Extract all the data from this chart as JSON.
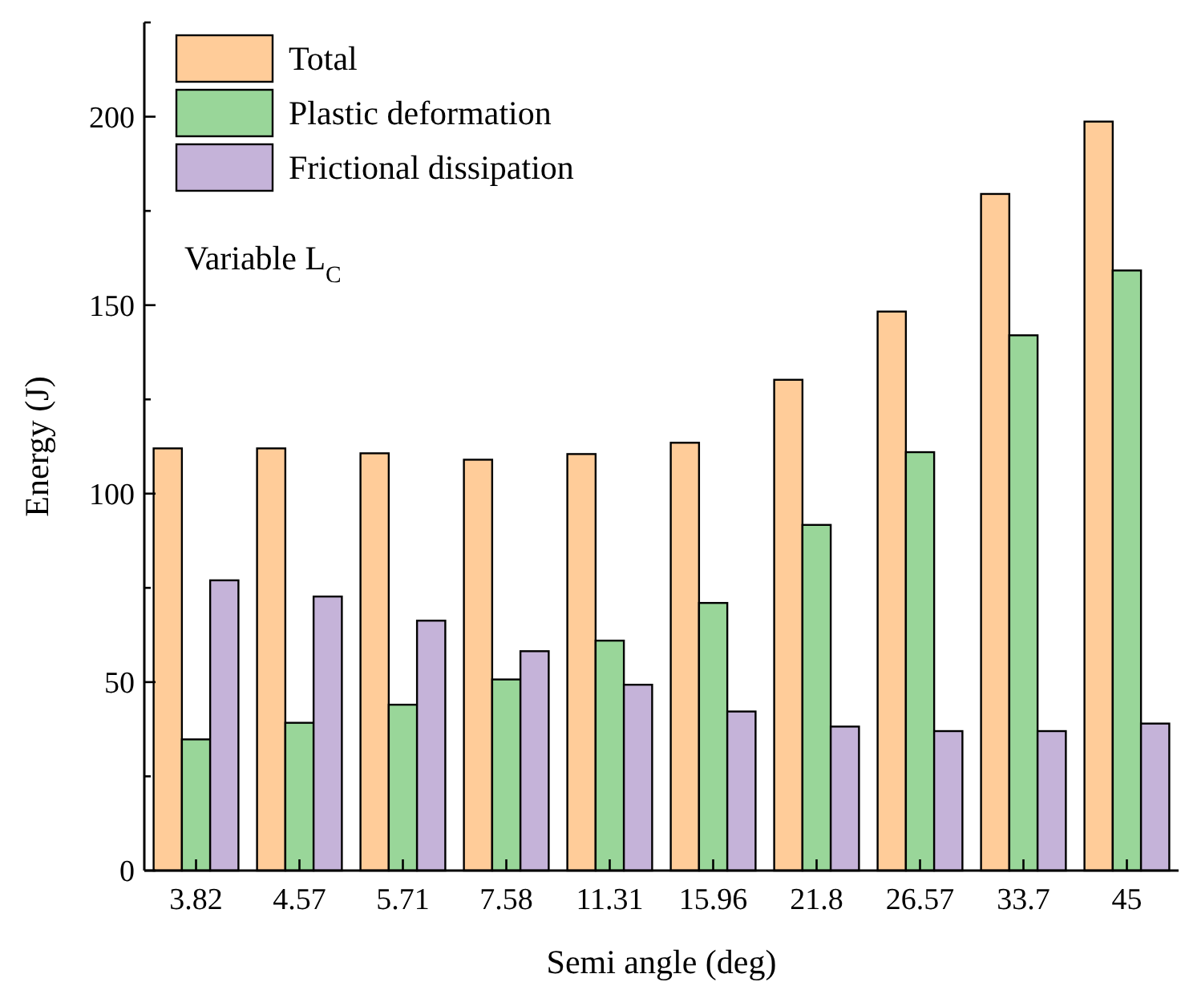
{
  "chart_data": {
    "type": "bar",
    "xlabel": "Semi angle (deg)",
    "ylabel": "Energy (J)",
    "categories": [
      "3.82",
      "4.57",
      "5.71",
      "7.58",
      "11.31",
      "15.96",
      "21.8",
      "26.57",
      "33.7",
      "45"
    ],
    "series": [
      {
        "name": "Total",
        "color": "#ffcc99",
        "values": [
          112,
          112,
          110.7,
          109,
          110.5,
          113.5,
          130.2,
          148.3,
          179.5,
          198.7
        ]
      },
      {
        "name": "Plastic deformation",
        "color": "#99d699",
        "values": [
          34.8,
          39.2,
          44,
          50.7,
          61,
          71,
          91.7,
          111,
          142,
          159.2
        ]
      },
      {
        "name": "Frictional dissipation",
        "color": "#c5b3d9",
        "values": [
          77,
          72.7,
          66.3,
          58.2,
          49.3,
          42.2,
          38.2,
          37,
          37,
          39
        ]
      }
    ],
    "ylim": [
      0,
      225
    ],
    "yticks": [
      0,
      {
        "value": 25,
        "label": null
      },
      50,
      {
        "value": 75,
        "label": null
      },
      100,
      {
        "value": 125,
        "label": null
      },
      150,
      {
        "value": 175,
        "label": null
      },
      200,
      {
        "value": 225,
        "label": null
      }
    ],
    "legend": "top left",
    "grid": false,
    "annotations": [
      "Variable L$_{C}$"
    ]
  }
}
